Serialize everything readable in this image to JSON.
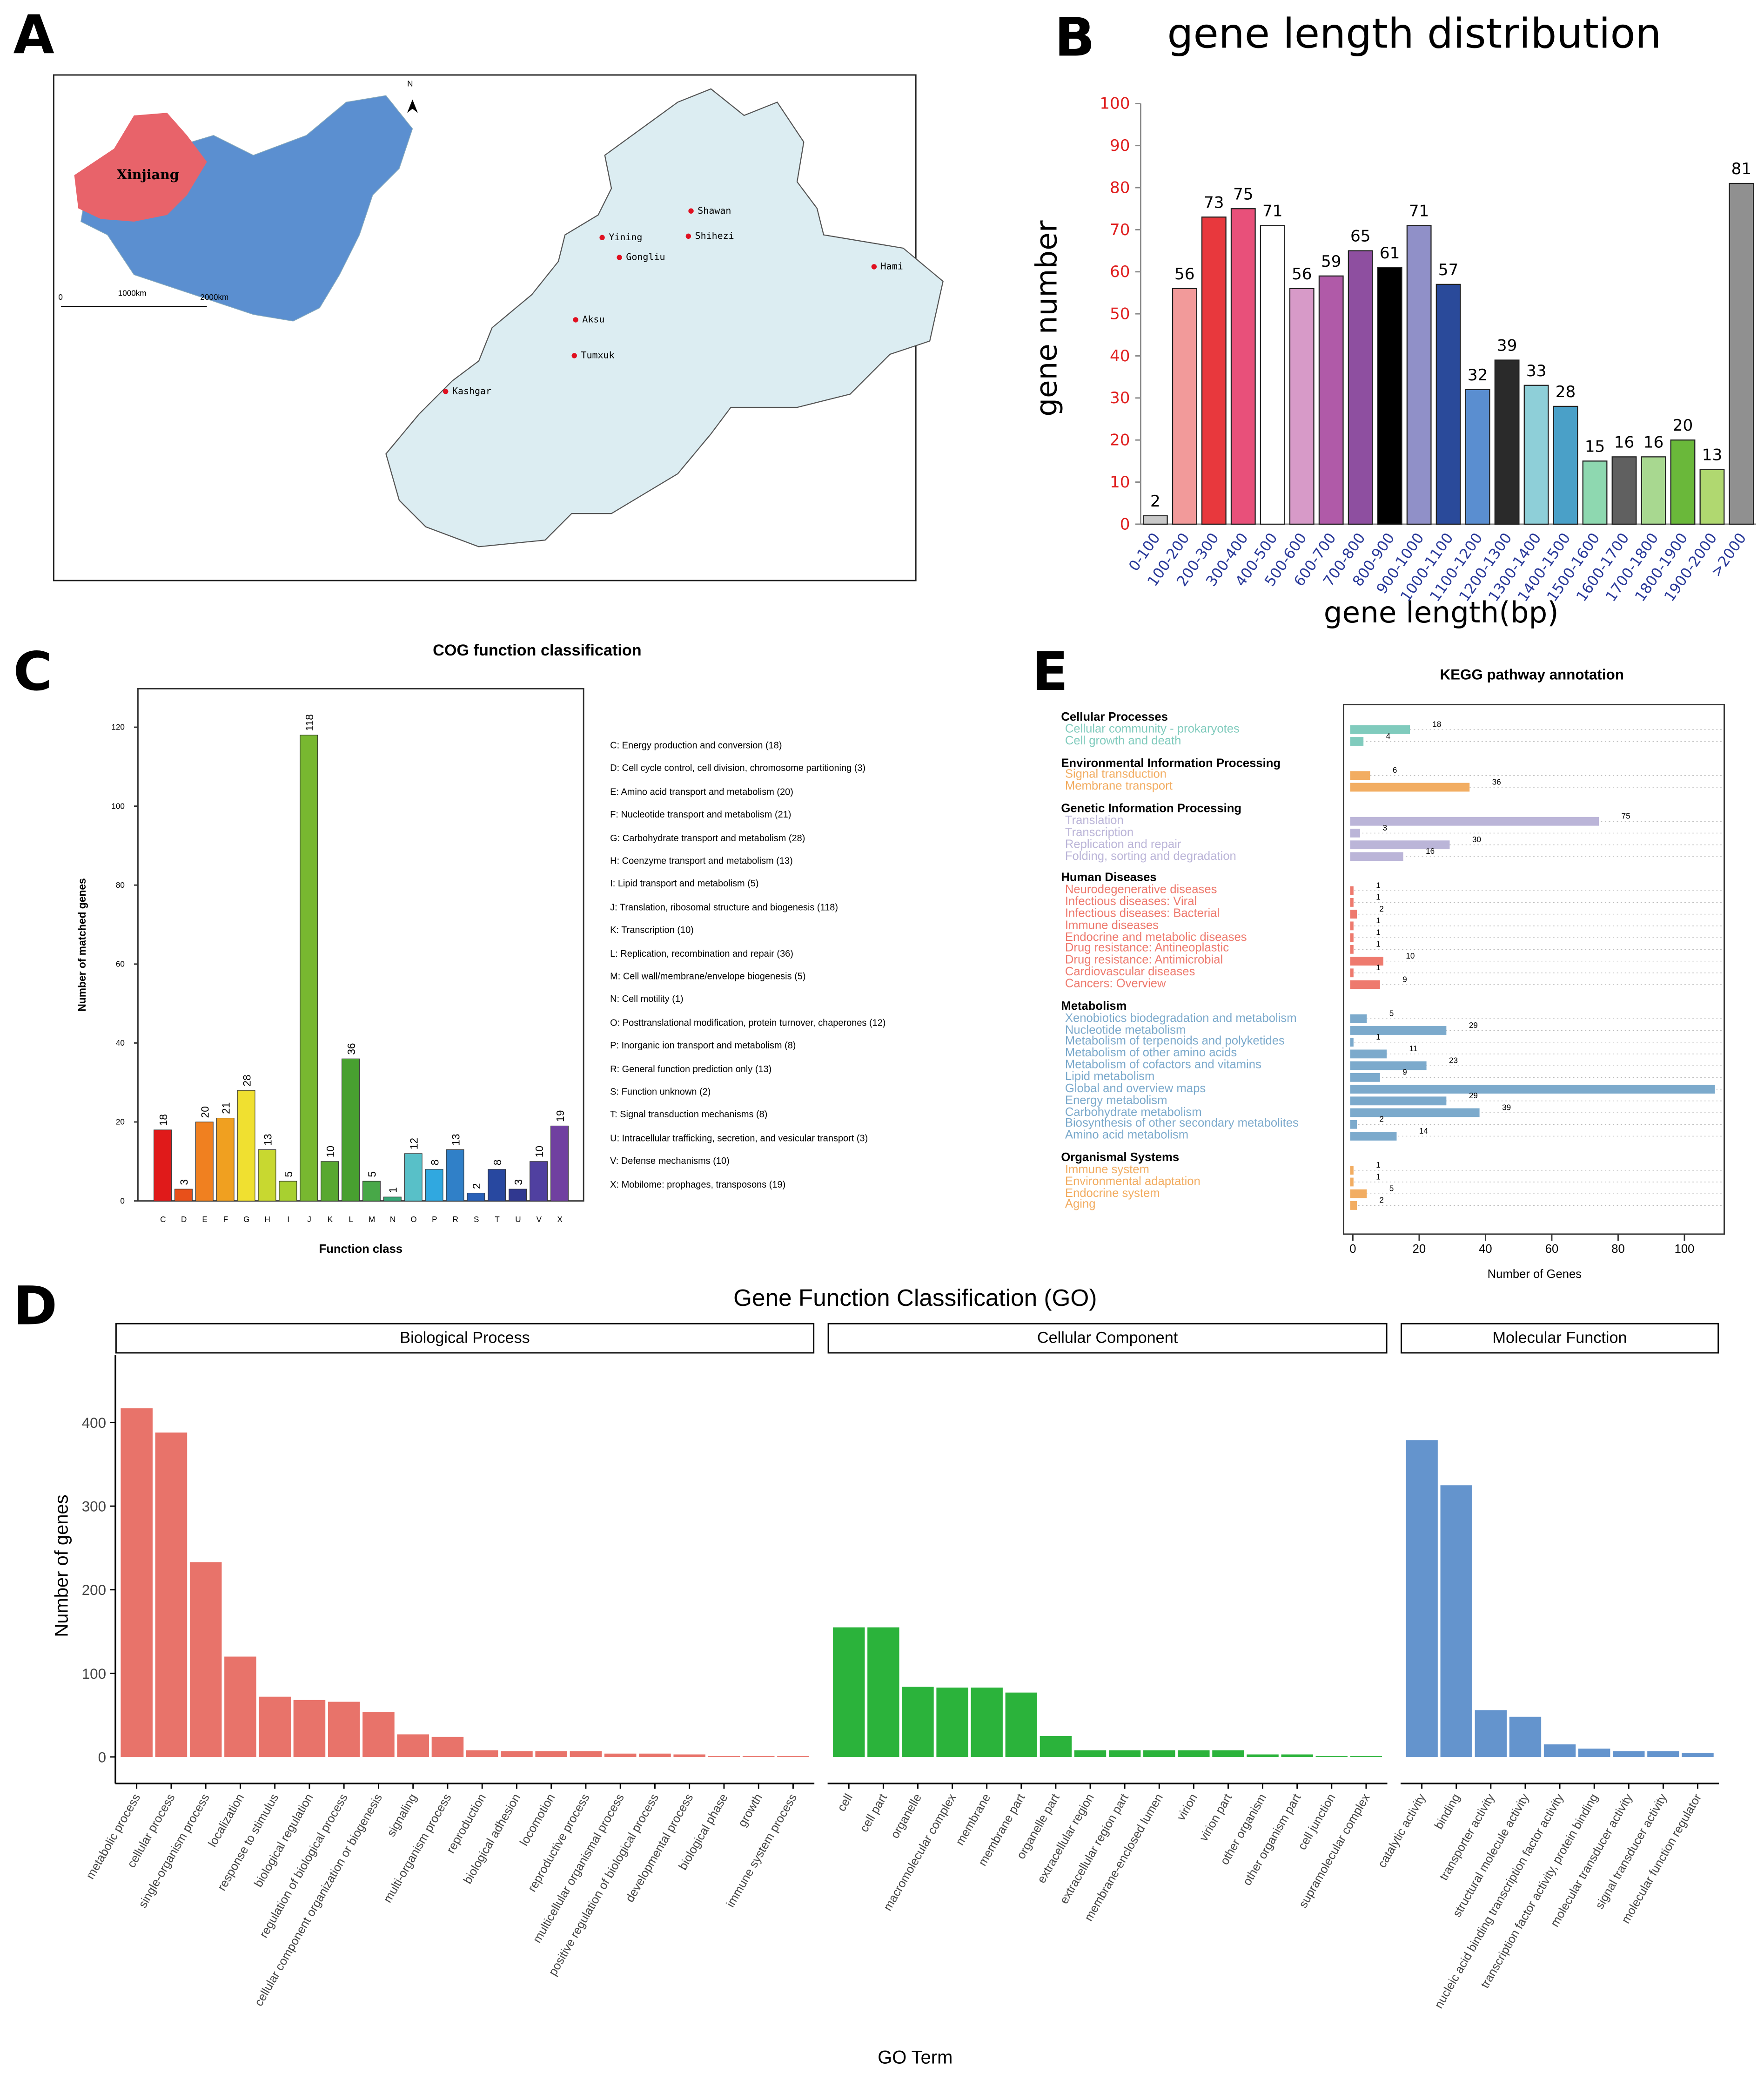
{
  "panels": {
    "a": "A",
    "b": "B",
    "c": "C",
    "d": "D",
    "e": "E"
  },
  "map": {
    "region_label": "Xinjiang",
    "north": "N",
    "scale_labels": [
      "0",
      "1000km",
      "2000km"
    ],
    "cities": [
      {
        "name": "Shawan"
      },
      {
        "name": "Yining"
      },
      {
        "name": "Shihezi"
      },
      {
        "name": "Gongliu"
      },
      {
        "name": "Hami"
      },
      {
        "name": "Aksu"
      },
      {
        "name": "Tumxuk"
      },
      {
        "name": "Kashgar"
      }
    ],
    "colors": {
      "china": "#5b8fd0",
      "xinjiang": "#e8636a",
      "detail": "#dcedf2"
    }
  },
  "chart_data": [
    {
      "id": "B",
      "type": "bar",
      "title": "gene length distribution",
      "xlabel": "gene length(bp)",
      "ylabel": "gene number",
      "ylim": [
        0,
        100
      ],
      "yticks": [
        0,
        10,
        20,
        30,
        40,
        50,
        60,
        70,
        80,
        90,
        100
      ],
      "categories": [
        "0-100",
        "100-200",
        "200-300",
        "300-400",
        "400-500",
        "500-600",
        "600-700",
        "700-800",
        "800-900",
        "900-1000",
        "1000-1100",
        "1100-1200",
        "1200-1300",
        "1300-1400",
        "1400-1500",
        "1500-1600",
        "1600-1700",
        "1700-1800",
        "1800-1900",
        "1900-2000",
        ">2000"
      ],
      "values": [
        2,
        56,
        73,
        75,
        71,
        56,
        59,
        65,
        61,
        71,
        57,
        32,
        39,
        33,
        28,
        15,
        16,
        16,
        20,
        13,
        81
      ],
      "colors": [
        "#c8c8c8",
        "#f29a9a",
        "#e8383d",
        "#e8507a",
        "#ffffff",
        "#d79ac8",
        "#b05aa8",
        "#8e4fa0",
        "#000000",
        "#9090c8",
        "#2a4a9a",
        "#5a8ed0",
        "#2a2a2a",
        "#8ecfd8",
        "#4aa0c8",
        "#8ed8b0",
        "#606060",
        "#a8d890",
        "#6ab83a",
        "#b0d870",
        "#909090"
      ]
    },
    {
      "id": "C",
      "type": "bar",
      "title": "COG function classification",
      "xlabel": "Function class",
      "ylabel": "Number of matched genes",
      "ylim": [
        0,
        130
      ],
      "yticks": [
        0,
        20,
        40,
        60,
        80,
        100,
        120
      ],
      "categories": [
        "C",
        "D",
        "E",
        "F",
        "G",
        "H",
        "I",
        "J",
        "K",
        "L",
        "M",
        "N",
        "O",
        "P",
        "R",
        "S",
        "T",
        "U",
        "V",
        "X"
      ],
      "values": [
        18,
        3,
        20,
        21,
        28,
        13,
        5,
        118,
        10,
        36,
        5,
        1,
        12,
        8,
        13,
        2,
        8,
        3,
        10,
        19
      ],
      "colors": [
        "#e01a1a",
        "#e8501a",
        "#f08020",
        "#f0a020",
        "#f0e030",
        "#c8d830",
        "#a8d030",
        "#78b830",
        "#58a830",
        "#48a030",
        "#48a848",
        "#38a878",
        "#58c0c8",
        "#30a8e0",
        "#3080c8",
        "#2860b8",
        "#2848a0",
        "#303890",
        "#5040a0",
        "#7040a0"
      ],
      "legend": [
        "C: Energy production and conversion   (18)",
        "D: Cell cycle control, cell division, chromosome partitioning   (3)",
        "E: Amino acid transport and metabolism   (20)",
        "F: Nucleotide transport and metabolism   (21)",
        "G: Carbohydrate transport and metabolism   (28)",
        "H: Coenzyme transport and metabolism   (13)",
        "I: Lipid transport and metabolism   (5)",
        "J: Translation, ribosomal structure and biogenesis   (118)",
        "K: Transcription   (10)",
        "L: Replication, recombination and repair   (36)",
        "M: Cell wall/membrane/envelope biogenesis   (5)",
        "N: Cell motility   (1)",
        "O: Posttranslational modification, protein turnover, chaperones   (12)",
        "P: Inorganic ion transport and metabolism   (8)",
        "R: General function prediction only   (13)",
        "S: Function unknown   (2)",
        "T: Signal transduction mechanisms   (8)",
        "U: Intracellular trafficking, secretion, and vesicular transport   (3)",
        "V: Defense mechanisms   (10)",
        "X: Mobilome: prophages, transposons   (19)"
      ]
    },
    {
      "id": "E",
      "type": "bar",
      "orientation": "horizontal",
      "title": "KEGG pathway annotation",
      "xlabel": "Number of Genes",
      "xlim": [
        0,
        110
      ],
      "xticks": [
        0,
        20,
        40,
        60,
        80,
        100
      ],
      "groups": [
        {
          "name": "Cellular Processes",
          "color": "#80cbbd",
          "items": [
            [
              "Cellular community - prokaryotes",
              18
            ],
            [
              "Cell growth and death",
              4
            ]
          ]
        },
        {
          "name": "Environmental Information Processing",
          "color": "#f2ad62",
          "items": [
            [
              "Signal transduction",
              6
            ],
            [
              "Membrane transport",
              36
            ]
          ]
        },
        {
          "name": "Genetic Information Processing",
          "color": "#bbb5d8",
          "items": [
            [
              "Translation",
              75
            ],
            [
              "Transcription",
              3
            ],
            [
              "Replication and repair",
              30
            ],
            [
              "Folding, sorting and degradation",
              16
            ]
          ]
        },
        {
          "name": "Human Diseases",
          "color": "#ee7a6e",
          "items": [
            [
              "Neurodegenerative diseases",
              1
            ],
            [
              "Infectious diseases: Viral",
              1
            ],
            [
              "Infectious diseases: Bacterial",
              2
            ],
            [
              "Immune diseases",
              1
            ],
            [
              "Endocrine and metabolic diseases",
              1
            ],
            [
              "Drug resistance: Antineoplastic",
              1
            ],
            [
              "Drug resistance: Antimicrobial",
              10
            ],
            [
              "Cardiovascular diseases",
              1
            ],
            [
              "Cancers: Overview",
              9
            ]
          ]
        },
        {
          "name": "Metabolism",
          "color": "#7caacc",
          "items": [
            [
              "Xenobiotics biodegradation and metabolism",
              5
            ],
            [
              "Nucleotide metabolism",
              29
            ],
            [
              "Metabolism of terpenoids and polyketides",
              1
            ],
            [
              "Metabolism of other amino acids",
              11
            ],
            [
              "Metabolism of cofactors and vitamins",
              23
            ],
            [
              "Lipid metabolism",
              9
            ],
            [
              "Global and overview maps",
              110
            ],
            [
              "Energy metabolism",
              29
            ],
            [
              "Carbohydrate metabolism",
              39
            ],
            [
              "Biosynthesis of other secondary metabolites",
              2
            ],
            [
              "Amino acid metabolism",
              14
            ]
          ]
        },
        {
          "name": "Organismal Systems",
          "color": "#f2ad62",
          "items": [
            [
              "Immune system",
              1
            ],
            [
              "Environmental adaptation",
              1
            ],
            [
              "Endocrine system",
              5
            ],
            [
              "Aging",
              2
            ]
          ]
        }
      ]
    },
    {
      "id": "D",
      "type": "bar",
      "title": "Gene Function Classification (GO)",
      "xlabel": "GO Term",
      "ylabel": "Number of genes",
      "ylim": [
        0,
        460
      ],
      "yticks": [
        0,
        100,
        200,
        300,
        400
      ],
      "facets": [
        {
          "name": "Biological Process",
          "color": "#e8736a",
          "categories": [
            "metabolic process",
            "cellular process",
            "single-organism process",
            "localization",
            "response to stimulus",
            "biological regulation",
            "regulation of biological process",
            "cellular component organization or biogenesis",
            "signaling",
            "multi-organism process",
            "reproduction",
            "biological adhesion",
            "locomotion",
            "reproductive process",
            "multicellular organismal process",
            "positive regulation of biological process",
            "developmental process",
            "biological phase",
            "growth",
            "immune system process"
          ],
          "values": [
            417,
            388,
            233,
            120,
            72,
            68,
            66,
            54,
            27,
            24,
            8,
            7,
            7,
            7,
            4,
            4,
            3,
            1,
            1,
            1
          ]
        },
        {
          "name": "Cellular Component",
          "color": "#2bb33b",
          "categories": [
            "cell",
            "cell part",
            "organelle",
            "macromolecular complex",
            "membrane",
            "membrane part",
            "organelle part",
            "extracellular region",
            "extracellular region part",
            "membrane-enclosed lumen",
            "virion",
            "virion part",
            "other organism",
            "other organism part",
            "cell junction",
            "supramolecular complex"
          ],
          "values": [
            155,
            155,
            84,
            83,
            83,
            77,
            25,
            8,
            8,
            8,
            8,
            8,
            3,
            3,
            1,
            1
          ]
        },
        {
          "name": "Molecular Function",
          "color": "#6494cd",
          "categories": [
            "catalytic activity",
            "binding",
            "transporter activity",
            "structural molecule activity",
            "nucleic acid binding transcription factor activity",
            "transcription factor activity, protein binding",
            "molecular transducer activity",
            "signal transducer activity",
            "molecular function regulator"
          ],
          "values": [
            379,
            325,
            56,
            48,
            15,
            10,
            7,
            7,
            5
          ]
        }
      ]
    }
  ]
}
